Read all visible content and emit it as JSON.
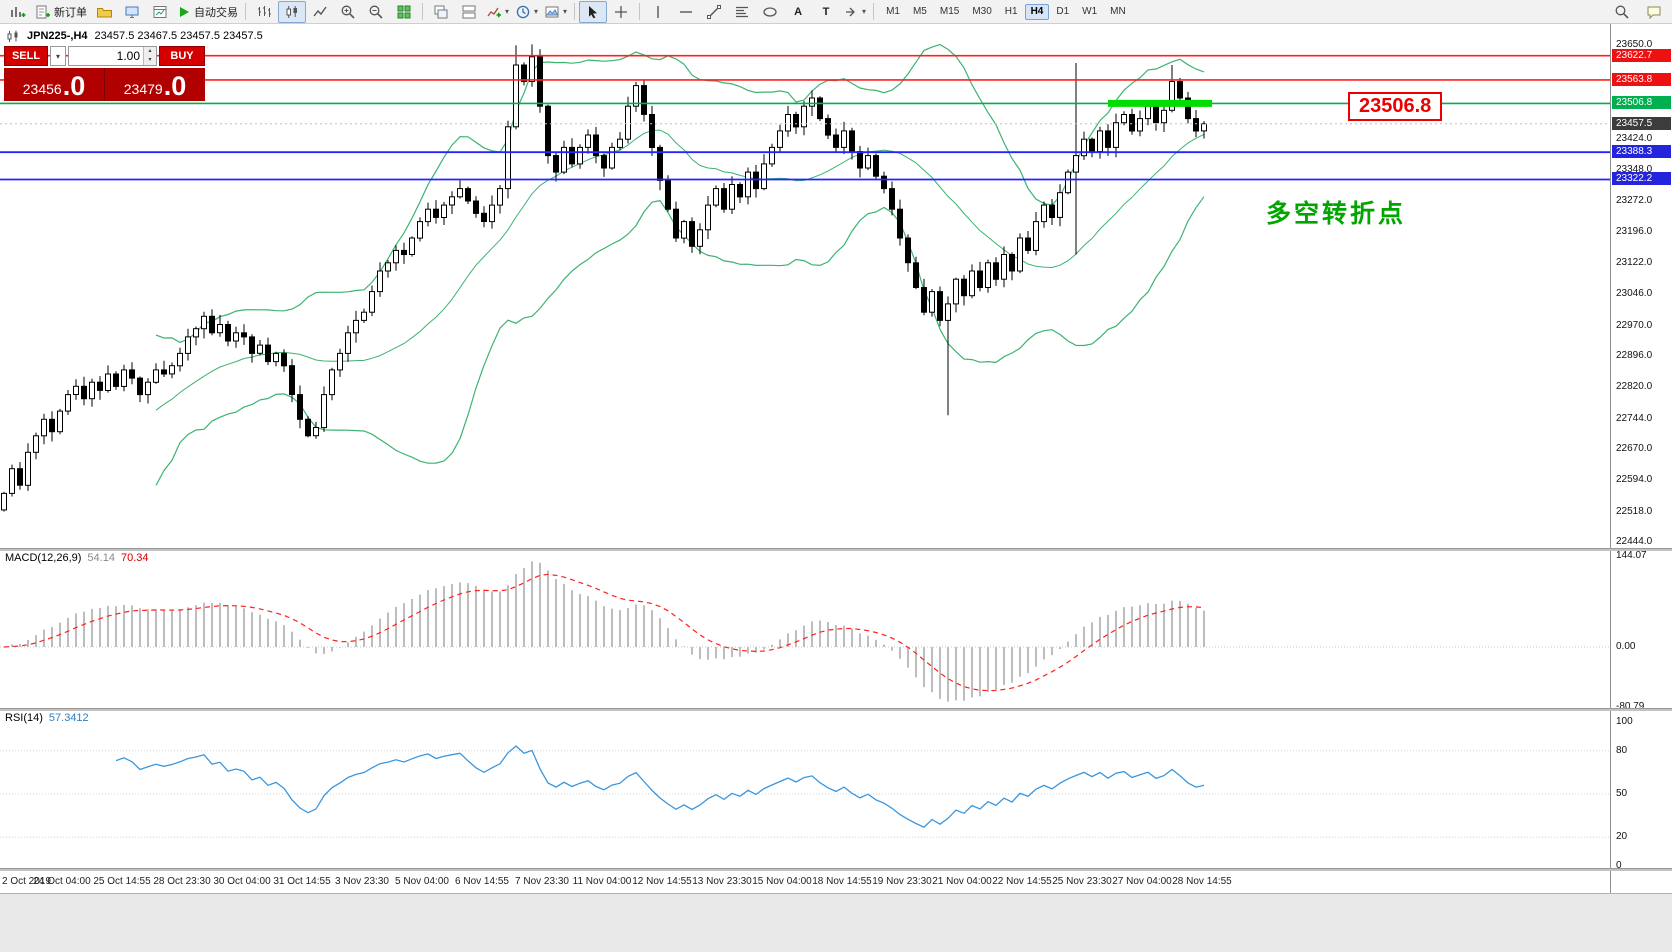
{
  "toolbar": {
    "new_order": "新订单",
    "autotrading": "自动交易",
    "glyphs": {
      "caret": "▾",
      "spin_up": "▴",
      "spin_down": "▾",
      "text_tool": "A",
      "label_tool": "T"
    },
    "timeframes": [
      {
        "label": "M1"
      },
      {
        "label": "M5"
      },
      {
        "label": "M15"
      },
      {
        "label": "M30"
      },
      {
        "label": "H1"
      },
      {
        "label": "H4",
        "active": true
      },
      {
        "label": "D1"
      },
      {
        "label": "W1"
      },
      {
        "label": "MN"
      }
    ]
  },
  "chart_header": {
    "symbol": "JPN225-,H4",
    "ohlc": "23457.5 23467.5 23457.5 23457.5"
  },
  "trade_panel": {
    "sell_label": "SELL",
    "buy_label": "BUY",
    "lot": "1.00",
    "sell_price_main": "23456",
    "sell_price_big": ".0",
    "buy_price_main": "23479",
    "buy_price_big": ".0"
  },
  "annotations": {
    "price_flag": "23506.8",
    "turning_point": "多空转折点"
  },
  "indicators": {
    "macd_label": "MACD(12,26,9)",
    "macd_value_main": "54.14",
    "macd_value_signal": "70.34",
    "rsi_label": "RSI(14)",
    "rsi_value": "57.3412"
  },
  "price_axis": {
    "plain_ticks": [
      "23650.0",
      "23424.0",
      "23348.0",
      "23272.0",
      "23196.0",
      "23122.0",
      "23046.0",
      "22970.0",
      "22896.0",
      "22820.0",
      "22744.0",
      "22670.0",
      "22594.0",
      "22518.0",
      "22444.0"
    ],
    "tags": [
      {
        "value": "23622.7",
        "bg": "#ee1111"
      },
      {
        "value": "23563.8",
        "bg": "#ee1111"
      },
      {
        "value": "23506.8",
        "bg": "#00b050"
      },
      {
        "value": "23457.5",
        "bg": "#3c3c3c"
      },
      {
        "value": "23388.3",
        "bg": "#2424dd"
      },
      {
        "value": "23322.2",
        "bg": "#2424dd"
      }
    ]
  },
  "macd_axis": [
    "144.07",
    "0.00",
    "-80.79"
  ],
  "rsi_axis": [
    "100",
    "80",
    "50",
    "20",
    "0"
  ],
  "time_axis": [
    "2 Oct 2019",
    "24 Oct 04:00",
    "25 Oct 14:55",
    "28 Oct 23:30",
    "30 Oct 04:00",
    "31 Oct 14:55",
    "3 Nov 23:30",
    "5 Nov 04:00",
    "6 Nov 14:55",
    "7 Nov 23:30",
    "11 Nov 04:00",
    "12 Nov 14:55",
    "13 Nov 23:30",
    "15 Nov 04:00",
    "18 Nov 14:55",
    "19 Nov 23:30",
    "21 Nov 04:00",
    "22 Nov 14:55",
    "25 Nov 23:30",
    "27 Nov 04:00",
    "28 Nov 14:55"
  ],
  "chart_data": [
    {
      "type": "candlestick",
      "symbol": "JPN225-",
      "timeframe": "H4",
      "last_price": 23457.5,
      "ylim": [
        22430,
        23685
      ],
      "closes": [
        22560,
        22620,
        22580,
        22660,
        22700,
        22740,
        22710,
        22760,
        22800,
        22820,
        22790,
        22830,
        22810,
        22850,
        22820,
        22860,
        22840,
        22800,
        22830,
        22860,
        22850,
        22870,
        22900,
        22940,
        22960,
        22990,
        22950,
        22970,
        22930,
        22950,
        22940,
        22900,
        22920,
        22880,
        22900,
        22870,
        22800,
        22740,
        22700,
        22720,
        22800,
        22860,
        22900,
        22950,
        22980,
        23000,
        23050,
        23100,
        23120,
        23150,
        23140,
        23180,
        23220,
        23250,
        23230,
        23260,
        23280,
        23300,
        23270,
        23240,
        23220,
        23260,
        23300,
        23450,
        23600,
        23560,
        23620,
        23500,
        23380,
        23340,
        23400,
        23360,
        23400,
        23430,
        23380,
        23350,
        23400,
        23420,
        23500,
        23550,
        23480,
        23400,
        23320,
        23250,
        23180,
        23220,
        23160,
        23200,
        23260,
        23300,
        23250,
        23310,
        23280,
        23340,
        23300,
        23360,
        23400,
        23440,
        23480,
        23450,
        23500,
        23520,
        23470,
        23430,
        23400,
        23440,
        23390,
        23350,
        23380,
        23330,
        23300,
        23250,
        23180,
        23120,
        23060,
        23000,
        23050,
        22980,
        23020,
        23080,
        23040,
        23100,
        23060,
        23120,
        23080,
        23140,
        23100,
        23180,
        23150,
        23220,
        23260,
        23230,
        23290,
        23340,
        23380,
        23420,
        23390,
        23440,
        23400,
        23460,
        23480,
        23440,
        23470,
        23500,
        23460,
        23490,
        23560,
        23520,
        23470,
        23440,
        23457.5
      ],
      "wick_overrides": {
        "64": [
          23648,
          null
        ],
        "66": [
          23650,
          null
        ],
        "118": [
          null,
          22750
        ],
        "134": [
          23605,
          23140
        ],
        "146": [
          23600,
          null
        ]
      },
      "overlays": {
        "bollinger": {
          "period": 20,
          "deviation": 2,
          "color": "#3cb371"
        },
        "hlines": [
          {
            "price": 23622.7,
            "color": "#ff2020",
            "width": 1.6
          },
          {
            "price": 23563.8,
            "color": "#ff2020",
            "width": 1.6
          },
          {
            "price": 23506.8,
            "color": "#00b050",
            "width": 1.6
          },
          {
            "price": 23388.3,
            "color": "#2424ff",
            "width": 1.8
          },
          {
            "price": 23322.2,
            "color": "#2424ff",
            "width": 1.8
          }
        ],
        "thick_segment": {
          "price": 23506.8,
          "from_index": 138,
          "to_index": 151,
          "color": "#00dd00"
        }
      }
    },
    {
      "type": "line",
      "name": "MACD",
      "params": "12,26,9",
      "values_note": "histogram = EMA12-EMA26 of closes, signal = EMA9 of histogram",
      "current_main": 54.14,
      "current_signal": 70.34,
      "ylim": [
        -80.79,
        144.07
      ],
      "histogram_color": "#bdbdbd",
      "signal_color": "#ff2020"
    },
    {
      "type": "line",
      "name": "RSI",
      "period": 14,
      "current": 57.3412,
      "ylim": [
        0,
        100
      ],
      "levels": [
        80,
        50,
        20
      ],
      "color": "#3a96dd"
    }
  ]
}
